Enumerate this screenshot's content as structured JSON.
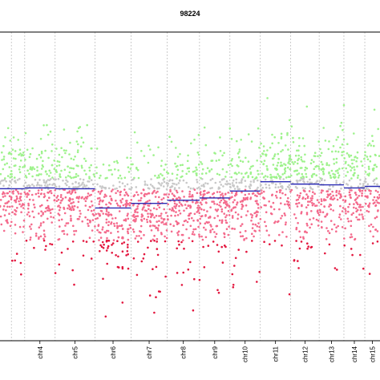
{
  "chart_data": {
    "type": "scatter",
    "title": "98224",
    "xlabel": "",
    "ylabel": "",
    "grid": false,
    "chromosome_separators": "dotted vertical lines",
    "colors": {
      "high": "#9ef28c",
      "mid": "#c8c8c8",
      "low": "#f46a8c",
      "very_low": "#e3163e",
      "segment": "#2a2ab4",
      "separator": "#c0c0c0",
      "frame": "#000000"
    },
    "chromosomes": [
      {
        "label": "",
        "start": 0.0,
        "end": 0.03,
        "segment_level": -0.015
      },
      {
        "label": "",
        "start": 0.03,
        "end": 0.065,
        "segment_level": -0.015
      },
      {
        "label": "chr4",
        "start": 0.065,
        "end": 0.145,
        "segment_level": -0.01
      },
      {
        "label": "chr5",
        "start": 0.145,
        "end": 0.25,
        "segment_level": -0.015
      },
      {
        "label": "chr6",
        "start": 0.25,
        "end": 0.345,
        "segment_level": -0.14
      },
      {
        "label": "chr7",
        "start": 0.345,
        "end": 0.44,
        "segment_level": -0.11
      },
      {
        "label": "chr8",
        "start": 0.44,
        "end": 0.525,
        "segment_level": -0.09
      },
      {
        "label": "chr9",
        "start": 0.525,
        "end": 0.605,
        "segment_level": -0.075
      },
      {
        "label": "chr10",
        "start": 0.605,
        "end": 0.685,
        "segment_level": -0.03
      },
      {
        "label": "chr11",
        "start": 0.685,
        "end": 0.765,
        "segment_level": 0.03
      },
      {
        "label": "chr12",
        "start": 0.765,
        "end": 0.84,
        "segment_level": 0.015
      },
      {
        "label": "chr13",
        "start": 0.84,
        "end": 0.905,
        "segment_level": 0.01
      },
      {
        "label": "chr14",
        "start": 0.905,
        "end": 0.96,
        "segment_level": -0.01
      },
      {
        "label": "chr15",
        "start": 0.96,
        "end": 1.0,
        "segment_level": 0.0
      }
    ],
    "tick_labels": [
      "chr4",
      "chr5",
      "chr6",
      "chr7",
      "chr8",
      "chr9",
      "chr10",
      "chr11",
      "chr12",
      "chr13",
      "chr14",
      "chr15"
    ],
    "points_per_chromosome": 180,
    "ylim": [
      -1.0,
      1.0
    ]
  }
}
